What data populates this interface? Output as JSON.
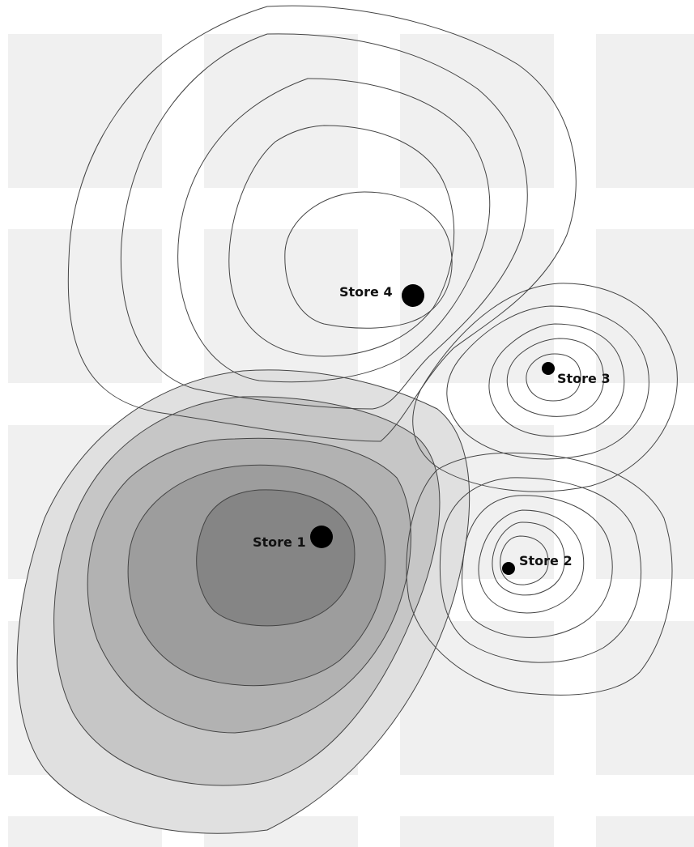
{
  "map": {
    "colors": {
      "background": "#ffffff",
      "city_block": "#f0f0f0",
      "contour_stroke": "#444444",
      "store_marker": "#000000",
      "store1_zone_fills": [
        "#e0e0e0",
        "#c6c6c6",
        "#b2b2b2",
        "#9d9d9d",
        "#858585"
      ]
    },
    "stores": [
      {
        "id": "store-1",
        "label": "Store 1",
        "marker_size": "large",
        "zone": "shaded"
      },
      {
        "id": "store-2",
        "label": "Store 2",
        "marker_size": "small",
        "zone": "outline"
      },
      {
        "id": "store-3",
        "label": "Store 3",
        "marker_size": "small",
        "zone": "outline"
      },
      {
        "id": "store-4",
        "label": "Store 4",
        "marker_size": "large",
        "zone": "outline"
      }
    ]
  }
}
